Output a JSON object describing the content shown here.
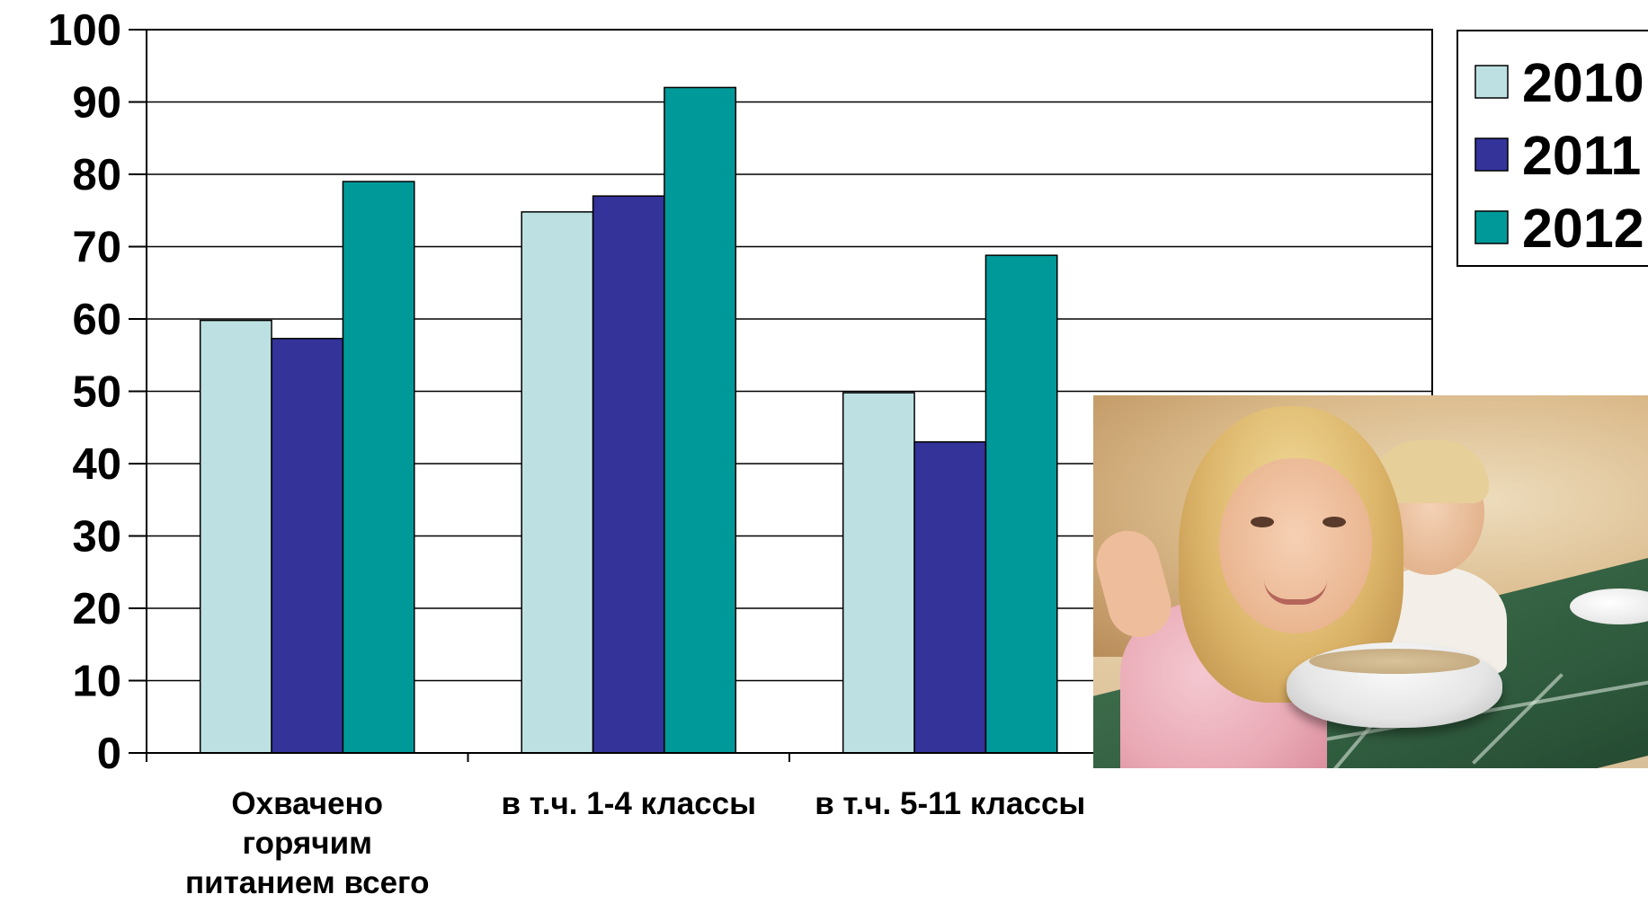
{
  "chart_data": {
    "type": "bar",
    "categories": [
      [
        "Охвачено",
        "горячим",
        "питанием всего"
      ],
      [
        "в т.ч. 1-4 классы"
      ],
      [
        "в т.ч. 5-11 классы"
      ],
      []
    ],
    "series": [
      {
        "name": "2010",
        "color": "#bde1e3",
        "values": [
          59.8,
          74.8,
          49.8,
          null
        ]
      },
      {
        "name": "2011",
        "color": "#333399",
        "values": [
          57.3,
          77,
          43,
          null
        ]
      },
      {
        "name": "2012",
        "color": "#009999",
        "values": [
          79,
          92,
          68.8,
          null
        ]
      }
    ],
    "ylim": [
      0,
      100
    ],
    "yticks": [
      0,
      10,
      20,
      30,
      40,
      50,
      60,
      70,
      80,
      90,
      100
    ],
    "grid": true,
    "legend": "top-right",
    "title": "",
    "xlabel": "",
    "ylabel": ""
  },
  "photo": {
    "icon": "children-eating-photo"
  }
}
